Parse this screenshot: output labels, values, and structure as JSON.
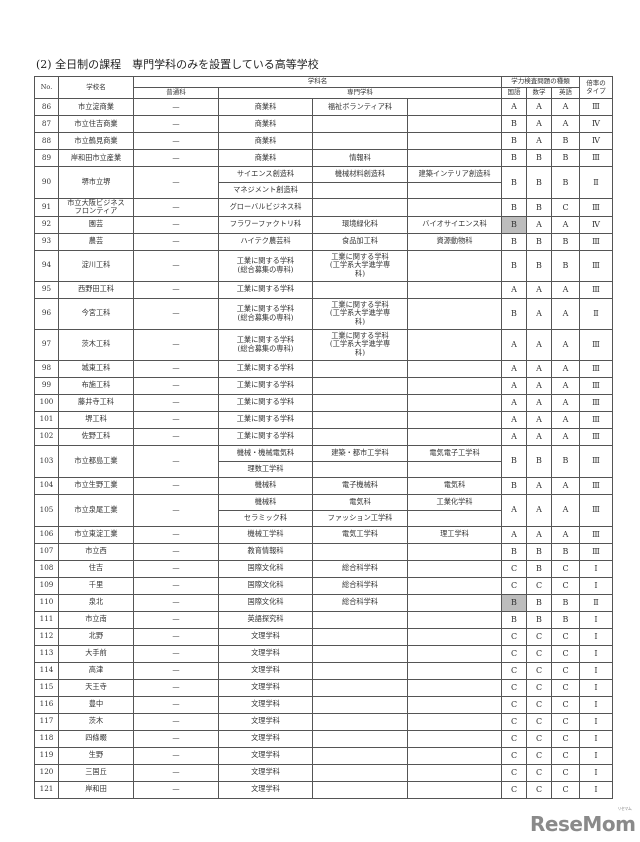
{
  "title": "(2) 全日制の課程　専門学科のみを設置している高等学校",
  "header": {
    "no": "No.",
    "school": "学校名",
    "department": "学科名",
    "general": "普通科",
    "specialized": "専門学科",
    "exam_types": "学力検査問題の種類",
    "japanese": "国語",
    "math": "数学",
    "english": "英語",
    "ratio_type": "倍率の\nタイプ"
  },
  "highlight_color": "#bdbdbd",
  "rows": [
    {
      "no": "86",
      "name": "市立淀商業",
      "general": "—",
      "majors": [
        [
          "商業科",
          "福祉ボランティア科",
          ""
        ]
      ],
      "ja": "A",
      "math": "A",
      "en": "A",
      "type": "Ⅲ"
    },
    {
      "no": "87",
      "name": "市立住吉商業",
      "general": "—",
      "majors": [
        [
          "商業科",
          "",
          ""
        ]
      ],
      "ja": "B",
      "math": "A",
      "en": "A",
      "type": "Ⅳ"
    },
    {
      "no": "88",
      "name": "市立鶴見商業",
      "general": "—",
      "majors": [
        [
          "商業科",
          "",
          ""
        ]
      ],
      "ja": "B",
      "math": "A",
      "en": "B",
      "type": "Ⅳ"
    },
    {
      "no": "89",
      "name": "岸和田市立産業",
      "general": "—",
      "majors": [
        [
          "商業科",
          "情報科",
          ""
        ]
      ],
      "ja": "B",
      "math": "B",
      "en": "B",
      "type": "Ⅲ"
    },
    {
      "no": "90",
      "name": "堺市立堺",
      "general": "—",
      "majors": [
        [
          "サイエンス創造科",
          "機械材料創造科",
          "建築インテリア創造科"
        ],
        [
          "マネジメント創造科",
          "",
          ""
        ]
      ],
      "ja": "B",
      "math": "B",
      "en": "B",
      "type": "Ⅱ"
    },
    {
      "no": "91",
      "name": "市立大阪ビジネス\nフロンティア",
      "general": "—",
      "majors": [
        [
          "グローバルビジネス科",
          "",
          ""
        ]
      ],
      "ja": "B",
      "math": "B",
      "en": "C",
      "type": "Ⅲ"
    },
    {
      "no": "92",
      "name": "園芸",
      "general": "—",
      "majors": [
        [
          "フラワーファクトリ科",
          "環境緑化科",
          "バイオサイエンス科"
        ]
      ],
      "ja": "B",
      "math": "A",
      "en": "A",
      "type": "Ⅳ",
      "highlight_ja": true
    },
    {
      "no": "93",
      "name": "農芸",
      "general": "—",
      "majors": [
        [
          "ハイテク農芸科",
          "食品加工科",
          "資源動物科"
        ]
      ],
      "ja": "B",
      "math": "B",
      "en": "B",
      "type": "Ⅲ"
    },
    {
      "no": "94",
      "name": "淀川工科",
      "general": "—",
      "tall": true,
      "majors": [
        [
          "工業に関する学科\n(総合募集の専科)",
          "工業に関する学科\n(工学系大学進学専\n科)",
          ""
        ]
      ],
      "ja": "B",
      "math": "B",
      "en": "B",
      "type": "Ⅲ"
    },
    {
      "no": "95",
      "name": "西野田工科",
      "general": "—",
      "majors": [
        [
          "工業に関する学科",
          "",
          ""
        ]
      ],
      "ja": "A",
      "math": "A",
      "en": "A",
      "type": "Ⅲ"
    },
    {
      "no": "96",
      "name": "今宮工科",
      "general": "—",
      "tall": true,
      "majors": [
        [
          "工業に関する学科\n(総合募集の専科)",
          "工業に関する学科\n(工学系大学進学専\n科)",
          ""
        ]
      ],
      "ja": "B",
      "math": "A",
      "en": "A",
      "type": "Ⅱ"
    },
    {
      "no": "97",
      "name": "茨木工科",
      "general": "—",
      "tall": true,
      "majors": [
        [
          "工業に関する学科\n(総合募集の専科)",
          "工業に関する学科\n(工学系大学進学専\n科)",
          ""
        ]
      ],
      "ja": "A",
      "math": "A",
      "en": "A",
      "type": "Ⅲ"
    },
    {
      "no": "98",
      "name": "城東工科",
      "general": "—",
      "majors": [
        [
          "工業に関する学科",
          "",
          ""
        ]
      ],
      "ja": "A",
      "math": "A",
      "en": "A",
      "type": "Ⅲ"
    },
    {
      "no": "99",
      "name": "布施工科",
      "general": "—",
      "majors": [
        [
          "工業に関する学科",
          "",
          ""
        ]
      ],
      "ja": "A",
      "math": "A",
      "en": "A",
      "type": "Ⅲ"
    },
    {
      "no": "100",
      "name": "藤井寺工科",
      "general": "—",
      "majors": [
        [
          "工業に関する学科",
          "",
          ""
        ]
      ],
      "ja": "A",
      "math": "A",
      "en": "A",
      "type": "Ⅲ"
    },
    {
      "no": "101",
      "name": "堺工科",
      "general": "—",
      "majors": [
        [
          "工業に関する学科",
          "",
          ""
        ]
      ],
      "ja": "A",
      "math": "A",
      "en": "A",
      "type": "Ⅲ"
    },
    {
      "no": "102",
      "name": "佐野工科",
      "general": "—",
      "majors": [
        [
          "工業に関する学科",
          "",
          ""
        ]
      ],
      "ja": "A",
      "math": "A",
      "en": "A",
      "type": "Ⅲ"
    },
    {
      "no": "103",
      "name": "市立都島工業",
      "general": "—",
      "majors": [
        [
          "機械・機械電気科",
          "建築・都市工学科",
          "電気電子工学科"
        ],
        [
          "理数工学科",
          "",
          ""
        ]
      ],
      "ja": "B",
      "math": "B",
      "en": "B",
      "type": "Ⅲ"
    },
    {
      "no": "104",
      "name": "市立生野工業",
      "general": "—",
      "majors": [
        [
          "機械科",
          "電子機械科",
          "電気科"
        ]
      ],
      "ja": "B",
      "math": "A",
      "en": "A",
      "type": "Ⅲ"
    },
    {
      "no": "105",
      "name": "市立泉尾工業",
      "general": "—",
      "majors": [
        [
          "機械科",
          "電気科",
          "工業化学科"
        ],
        [
          "セラミック科",
          "ファッション工学科",
          ""
        ]
      ],
      "ja": "A",
      "math": "A",
      "en": "A",
      "type": "Ⅲ"
    },
    {
      "no": "106",
      "name": "市立東淀工業",
      "general": "—",
      "majors": [
        [
          "機械工学科",
          "電気工学科",
          "理工学科"
        ]
      ],
      "ja": "A",
      "math": "A",
      "en": "A",
      "type": "Ⅲ"
    },
    {
      "no": "107",
      "name": "市立西",
      "general": "—",
      "majors": [
        [
          "教育情報科",
          "",
          ""
        ]
      ],
      "ja": "B",
      "math": "B",
      "en": "B",
      "type": "Ⅲ"
    },
    {
      "no": "108",
      "name": "住吉",
      "general": "—",
      "majors": [
        [
          "国際文化科",
          "総合科学科",
          ""
        ]
      ],
      "ja": "C",
      "math": "B",
      "en": "C",
      "type": "Ⅰ"
    },
    {
      "no": "109",
      "name": "千里",
      "general": "—",
      "majors": [
        [
          "国際文化科",
          "総合科学科",
          ""
        ]
      ],
      "ja": "C",
      "math": "C",
      "en": "C",
      "type": "Ⅰ"
    },
    {
      "no": "110",
      "name": "泉北",
      "general": "—",
      "majors": [
        [
          "国際文化科",
          "総合科学科",
          ""
        ]
      ],
      "ja": "B",
      "math": "B",
      "en": "B",
      "type": "Ⅱ",
      "highlight_ja": true
    },
    {
      "no": "111",
      "name": "市立南",
      "general": "—",
      "majors": [
        [
          "英語探究科",
          "",
          ""
        ]
      ],
      "ja": "B",
      "math": "B",
      "en": "B",
      "type": "Ⅰ"
    },
    {
      "no": "112",
      "name": "北野",
      "general": "—",
      "majors": [
        [
          "文理学科",
          "",
          ""
        ]
      ],
      "ja": "C",
      "math": "C",
      "en": "C",
      "type": "Ⅰ"
    },
    {
      "no": "113",
      "name": "大手前",
      "general": "—",
      "majors": [
        [
          "文理学科",
          "",
          ""
        ]
      ],
      "ja": "C",
      "math": "C",
      "en": "C",
      "type": "Ⅰ"
    },
    {
      "no": "114",
      "name": "高津",
      "general": "—",
      "majors": [
        [
          "文理学科",
          "",
          ""
        ]
      ],
      "ja": "C",
      "math": "C",
      "en": "C",
      "type": "Ⅰ"
    },
    {
      "no": "115",
      "name": "天王寺",
      "general": "—",
      "majors": [
        [
          "文理学科",
          "",
          ""
        ]
      ],
      "ja": "C",
      "math": "C",
      "en": "C",
      "type": "Ⅰ"
    },
    {
      "no": "116",
      "name": "豊中",
      "general": "—",
      "majors": [
        [
          "文理学科",
          "",
          ""
        ]
      ],
      "ja": "C",
      "math": "C",
      "en": "C",
      "type": "Ⅰ"
    },
    {
      "no": "117",
      "name": "茨木",
      "general": "—",
      "majors": [
        [
          "文理学科",
          "",
          ""
        ]
      ],
      "ja": "C",
      "math": "C",
      "en": "C",
      "type": "Ⅰ"
    },
    {
      "no": "118",
      "name": "四條畷",
      "general": "—",
      "majors": [
        [
          "文理学科",
          "",
          ""
        ]
      ],
      "ja": "C",
      "math": "C",
      "en": "C",
      "type": "Ⅰ"
    },
    {
      "no": "119",
      "name": "生野",
      "general": "—",
      "majors": [
        [
          "文理学科",
          "",
          ""
        ]
      ],
      "ja": "C",
      "math": "C",
      "en": "C",
      "type": "Ⅰ"
    },
    {
      "no": "120",
      "name": "三国丘",
      "general": "—",
      "majors": [
        [
          "文理学科",
          "",
          ""
        ]
      ],
      "ja": "C",
      "math": "C",
      "en": "C",
      "type": "Ⅰ"
    },
    {
      "no": "121",
      "name": "岸和田",
      "general": "—",
      "majors": [
        [
          "文理学科",
          "",
          ""
        ]
      ],
      "ja": "C",
      "math": "C",
      "en": "C",
      "type": "Ⅰ"
    }
  ],
  "watermark": "ReseMom",
  "watermark_ruby": "リセマム"
}
